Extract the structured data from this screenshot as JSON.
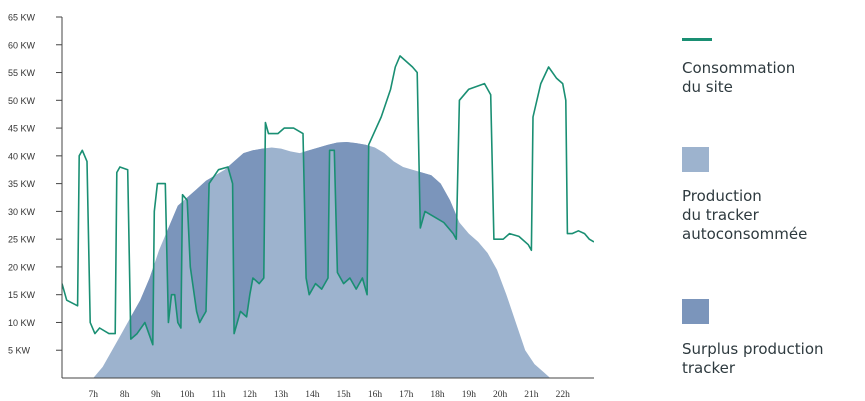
{
  "chart_data": {
    "type": "area",
    "ylim": [
      0,
      65
    ],
    "yticks": [
      "65 KW",
      "60 KW",
      "55 KW",
      "50 KW",
      "45 KW",
      "40 KW",
      "35 KW",
      "30 KW",
      "25 KW",
      "20 KW",
      "15 KW",
      "10 KW",
      "5 KW"
    ],
    "ytick_values": [
      65,
      60,
      55,
      50,
      45,
      40,
      35,
      30,
      25,
      20,
      15,
      10,
      5
    ],
    "xlim": [
      6.0,
      23.0
    ],
    "xticks": [
      "7h",
      "8h",
      "9h",
      "10h",
      "11h",
      "12h",
      "13h",
      "14h",
      "15h",
      "16h",
      "17h",
      "18h",
      "19h",
      "20h",
      "21h",
      "22h"
    ],
    "xtick_values": [
      7,
      8,
      9,
      10,
      11,
      12,
      13,
      14,
      15,
      16,
      17,
      18,
      19,
      20,
      21,
      22
    ],
    "legend_position": "right",
    "series": [
      {
        "name": "Consommation du site",
        "kind": "line",
        "color": "#1a8f73",
        "points": [
          [
            6.0,
            17
          ],
          [
            6.15,
            14
          ],
          [
            6.5,
            13
          ],
          [
            6.55,
            40
          ],
          [
            6.65,
            41
          ],
          [
            6.8,
            39
          ],
          [
            6.9,
            10
          ],
          [
            7.05,
            8
          ],
          [
            7.2,
            9
          ],
          [
            7.5,
            8
          ],
          [
            7.7,
            8
          ],
          [
            7.75,
            37
          ],
          [
            7.85,
            38
          ],
          [
            8.1,
            37.5
          ],
          [
            8.2,
            7
          ],
          [
            8.4,
            8
          ],
          [
            8.65,
            10
          ],
          [
            8.9,
            6
          ],
          [
            8.95,
            30
          ],
          [
            9.05,
            35
          ],
          [
            9.3,
            35
          ],
          [
            9.4,
            10
          ],
          [
            9.5,
            15
          ],
          [
            9.6,
            15
          ],
          [
            9.7,
            10
          ],
          [
            9.8,
            9
          ],
          [
            9.85,
            33
          ],
          [
            10.0,
            32
          ],
          [
            10.1,
            20
          ],
          [
            10.3,
            12
          ],
          [
            10.4,
            10
          ],
          [
            10.5,
            11
          ],
          [
            10.6,
            12
          ],
          [
            10.7,
            35
          ],
          [
            11.0,
            37.5
          ],
          [
            11.3,
            38
          ],
          [
            11.45,
            35
          ],
          [
            11.5,
            8
          ],
          [
            11.7,
            12
          ],
          [
            11.9,
            11
          ],
          [
            12.0,
            15
          ],
          [
            12.1,
            18
          ],
          [
            12.3,
            17
          ],
          [
            12.45,
            18
          ],
          [
            12.5,
            46
          ],
          [
            12.6,
            44
          ],
          [
            12.9,
            44
          ],
          [
            13.1,
            45
          ],
          [
            13.4,
            45
          ],
          [
            13.7,
            44
          ],
          [
            13.8,
            18
          ],
          [
            13.9,
            15
          ],
          [
            14.1,
            17
          ],
          [
            14.3,
            16
          ],
          [
            14.5,
            18
          ],
          [
            14.55,
            41
          ],
          [
            14.7,
            41
          ],
          [
            14.8,
            19
          ],
          [
            15.0,
            17
          ],
          [
            15.2,
            18
          ],
          [
            15.4,
            16
          ],
          [
            15.6,
            18
          ],
          [
            15.75,
            15
          ],
          [
            15.8,
            42
          ],
          [
            16.2,
            47
          ],
          [
            16.5,
            52
          ],
          [
            16.65,
            56
          ],
          [
            16.8,
            58
          ],
          [
            17.2,
            56
          ],
          [
            17.35,
            55
          ],
          [
            17.45,
            27
          ],
          [
            17.6,
            30
          ],
          [
            17.9,
            29
          ],
          [
            18.2,
            28
          ],
          [
            18.5,
            26
          ],
          [
            18.6,
            25
          ],
          [
            18.7,
            50
          ],
          [
            19.0,
            52
          ],
          [
            19.5,
            53
          ],
          [
            19.7,
            51
          ],
          [
            19.8,
            25
          ],
          [
            20.1,
            25
          ],
          [
            20.3,
            26
          ],
          [
            20.6,
            25.5
          ],
          [
            20.9,
            24
          ],
          [
            21.0,
            23
          ],
          [
            21.05,
            47
          ],
          [
            21.3,
            53
          ],
          [
            21.55,
            56
          ],
          [
            21.8,
            54
          ],
          [
            22.0,
            53
          ],
          [
            22.1,
            50
          ],
          [
            22.15,
            26
          ],
          [
            22.3,
            26
          ],
          [
            22.5,
            26.5
          ],
          [
            22.7,
            26
          ],
          [
            22.85,
            25
          ],
          [
            23.0,
            24.5
          ]
        ]
      },
      {
        "name": "Production du tracker autoconsommée",
        "kind": "area",
        "color": "#9db3ce",
        "points": [
          [
            7.0,
            0
          ],
          [
            7.3,
            2
          ],
          [
            7.6,
            5
          ],
          [
            7.9,
            8
          ],
          [
            8.2,
            11
          ],
          [
            8.5,
            14
          ],
          [
            8.8,
            18
          ],
          [
            9.1,
            23
          ],
          [
            9.4,
            27
          ],
          [
            9.7,
            31
          ],
          [
            10.0,
            32.5
          ],
          [
            10.3,
            34
          ],
          [
            10.6,
            35.5
          ],
          [
            10.9,
            36.5
          ],
          [
            11.2,
            37.5
          ],
          [
            11.5,
            39
          ],
          [
            11.8,
            40.5
          ],
          [
            12.1,
            41
          ],
          [
            12.4,
            41.3
          ],
          [
            12.7,
            41.5
          ],
          [
            13.0,
            41.3
          ],
          [
            13.3,
            40.8
          ],
          [
            13.6,
            40.5
          ],
          [
            13.9,
            41
          ],
          [
            14.2,
            41.5
          ],
          [
            14.5,
            42
          ],
          [
            14.8,
            42.4
          ],
          [
            15.1,
            42.5
          ],
          [
            15.4,
            42.3
          ],
          [
            15.7,
            42
          ],
          [
            16.0,
            41.5
          ],
          [
            16.3,
            40.5
          ],
          [
            16.6,
            39
          ],
          [
            16.9,
            38
          ],
          [
            17.2,
            37.5
          ],
          [
            17.5,
            37
          ],
          [
            17.8,
            36.5
          ],
          [
            18.1,
            35
          ],
          [
            18.4,
            32
          ],
          [
            18.7,
            28
          ],
          [
            19.0,
            26
          ],
          [
            19.3,
            24.5
          ],
          [
            19.6,
            22.5
          ],
          [
            19.9,
            19.5
          ],
          [
            20.2,
            15
          ],
          [
            20.5,
            10
          ],
          [
            20.8,
            5
          ],
          [
            21.1,
            2.5
          ],
          [
            21.4,
            1
          ],
          [
            21.6,
            0
          ]
        ]
      },
      {
        "name": "Surplus production tracker",
        "kind": "area-between",
        "color": "#7b95bb",
        "description_of_fill": "region where production exceeds site consumption"
      }
    ]
  },
  "legend": {
    "consumption_label": "Consommation\ndu site",
    "selfconsumed_label": "Production\ndu tracker\nautoconsommée",
    "surplus_label": "Surplus production\ntracker"
  }
}
